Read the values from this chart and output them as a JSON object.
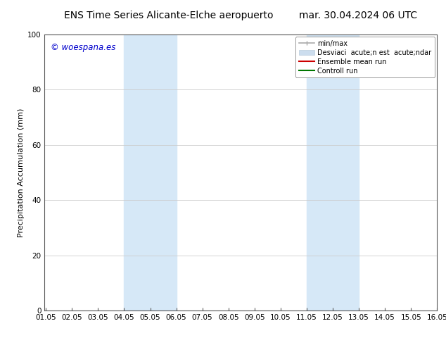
{
  "title_left": "ENS Time Series Alicante-Elche aeropuerto",
  "title_right": "mar. 30.04.2024 06 UTC",
  "ylabel": "Precipitation Accumulation (mm)",
  "ylim": [
    0,
    100
  ],
  "xlim": [
    1.0,
    16.05
  ],
  "xtick_labels": [
    "01.05",
    "02.05",
    "03.05",
    "04.05",
    "05.05",
    "06.05",
    "07.05",
    "08.05",
    "09.05",
    "10.05",
    "11.05",
    "12.05",
    "13.05",
    "14.05",
    "15.05",
    "16.05"
  ],
  "xtick_positions": [
    1.05,
    2.05,
    3.05,
    4.05,
    5.05,
    6.05,
    7.05,
    8.05,
    9.05,
    10.05,
    11.05,
    12.05,
    13.05,
    14.05,
    15.05,
    16.05
  ],
  "ytick_positions": [
    0,
    20,
    40,
    60,
    80,
    100
  ],
  "shaded_regions": [
    {
      "x_start": 4.05,
      "x_end": 6.05,
      "color": "#d6e8f7"
    },
    {
      "x_start": 11.05,
      "x_end": 13.05,
      "color": "#d6e8f7"
    }
  ],
  "watermark_text": "© woespana.es",
  "watermark_color": "#0000cc",
  "background_color": "#ffffff",
  "title_fontsize": 10,
  "axis_label_fontsize": 8,
  "tick_fontsize": 7.5,
  "legend_fontsize": 7,
  "minmax_color": "#aaaaaa",
  "stddev_color": "#ccddee",
  "ensemble_color": "#cc0000",
  "control_color": "#007700"
}
